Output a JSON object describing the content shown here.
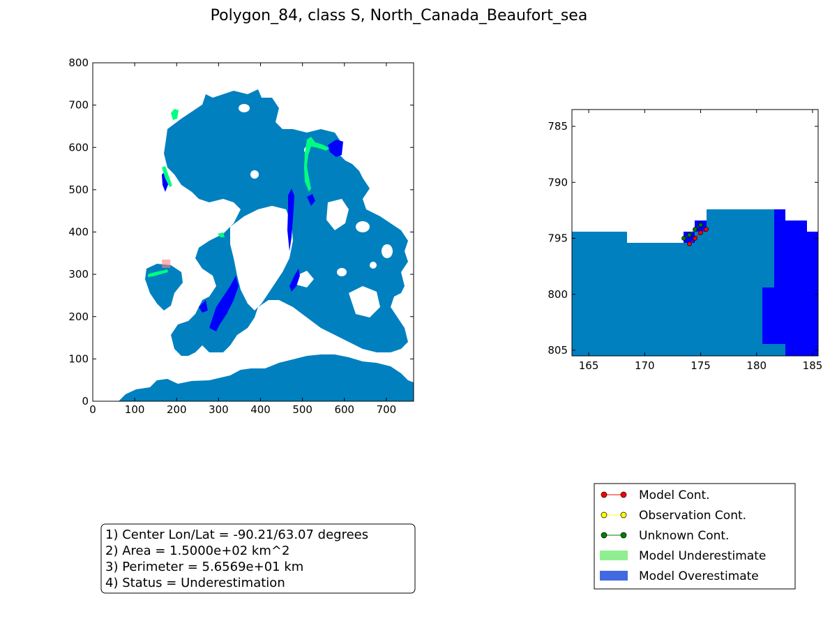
{
  "title": "Polygon_84, class S, North_Canada_Beaufort_sea",
  "colors": {
    "ocean": "#0080bf",
    "underestimate": "#00ff80",
    "overestimate": "#0000ff",
    "marker": "#ff8080",
    "model_cont": "#ff0000",
    "observation_cont": "#ffff00",
    "unknown_cont": "#008000",
    "legend_underestimate": "#90ee90",
    "legend_overestimate": "#4169e1"
  },
  "chart_data": [
    {
      "type": "heatmap",
      "name": "overview-map",
      "xlim": [
        0,
        765
      ],
      "ylim": [
        0,
        800
      ],
      "xticks": [
        0,
        100,
        200,
        300,
        400,
        500,
        600,
        700
      ],
      "yticks": [
        0,
        100,
        200,
        300,
        400,
        500,
        600,
        700,
        800
      ],
      "highlight_box": {
        "x": [
          165,
          185
        ],
        "y": [
          315,
          335
        ]
      }
    },
    {
      "type": "heatmap",
      "name": "zoom-map",
      "xlim": [
        163.5,
        185.5
      ],
      "ylim": [
        805.5,
        783.5
      ],
      "xticks": [
        165,
        170,
        175,
        180,
        185
      ],
      "yticks": [
        785,
        790,
        795,
        800,
        805
      ],
      "model_cont": {
        "x": [
          174.0,
          174.5,
          175.0,
          175.5
        ],
        "y": [
          795.5,
          795.0,
          794.5,
          794.2
        ]
      },
      "unknown_cont": {
        "x": [
          173.5,
          174.0,
          174.5,
          175.0
        ],
        "y": [
          795.0,
          794.7,
          794.2,
          793.8
        ]
      }
    }
  ],
  "legend": [
    {
      "label": "Model Cont.",
      "kind": "line",
      "color": "#ff0000"
    },
    {
      "label": "Observation Cont.",
      "kind": "line",
      "color": "#ffff00"
    },
    {
      "label": "Unknown Cont.",
      "kind": "line",
      "color": "#008000"
    },
    {
      "label": "Model Underestimate",
      "kind": "patch",
      "color": "#90ee90"
    },
    {
      "label": "Model Overestimate",
      "kind": "patch",
      "color": "#4169e1"
    }
  ],
  "info": {
    "line1": "1) Center Lon/Lat = -90.21/63.07 degrees",
    "line2": "2) Area = 1.5000e+02 km^2",
    "line3": "3) Perimeter = 5.6569e+01 km",
    "line4": "4) Status = Underestimation"
  }
}
